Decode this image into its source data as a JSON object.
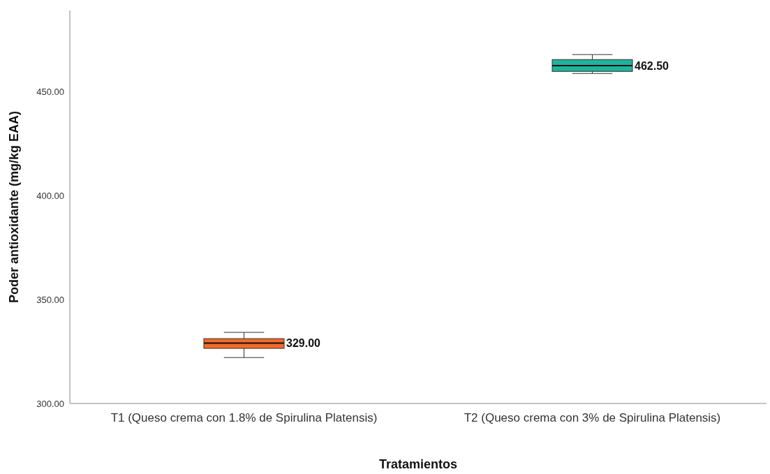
{
  "chart_data": {
    "type": "box",
    "xlabel": "Tratamientos",
    "ylabel": "Poder antioxidante (mg/kg EAA)",
    "categories": [
      "T1 (Queso crema con 1.8% de Spirulina Platensis)",
      "T2 (Queso crema con 3% de Spirulina Platensis)"
    ],
    "boxes": [
      {
        "low": 322.1,
        "q1": 326.5,
        "median": 329,
        "q3": 331.2,
        "high": 334.2
      },
      {
        "low": 458.7,
        "q1": 459.7,
        "median": 462.5,
        "q3": 465.4,
        "high": 467.8
      }
    ],
    "colors": [
      "#f26b2a",
      "#1fb39c"
    ],
    "ylim": [
      300,
      489
    ],
    "yticks": [
      {
        "value": 300,
        "label": "300.00"
      },
      {
        "value": 350,
        "label": "350.00"
      },
      {
        "value": 400,
        "label": "400.00"
      },
      {
        "value": 450,
        "label": "450.00"
      }
    ],
    "value_labels": [
      "329.00",
      "462.50"
    ]
  }
}
